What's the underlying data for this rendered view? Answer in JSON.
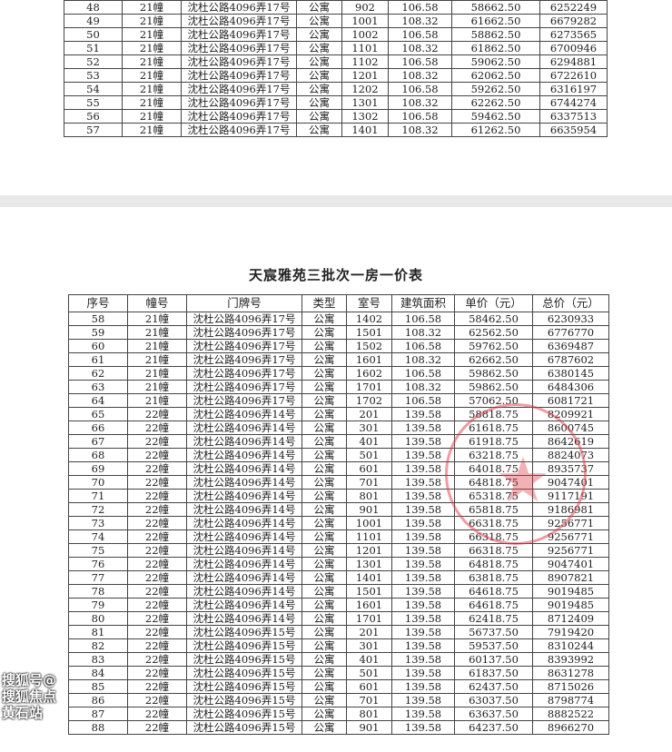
{
  "watermark": "搜狐号@搜狐焦点黄石站",
  "stamp_color": "#dc3c46",
  "page2": {
    "title": "天宸雅苑三批次一房一价表"
  },
  "headers": [
    "序号",
    "幢号",
    "门牌号",
    "类型",
    "室号",
    "建筑面积",
    "单价（元）",
    "总价（元）"
  ],
  "table1_rows": [
    [
      "48",
      "21幢",
      "沈杜公路4096弄17号",
      "公寓",
      "902",
      "106.58",
      "58662.50",
      "6252249"
    ],
    [
      "49",
      "21幢",
      "沈杜公路4096弄17号",
      "公寓",
      "1001",
      "108.32",
      "61662.50",
      "6679282"
    ],
    [
      "50",
      "21幢",
      "沈杜公路4096弄17号",
      "公寓",
      "1002",
      "106.58",
      "58862.50",
      "6273565"
    ],
    [
      "51",
      "21幢",
      "沈杜公路4096弄17号",
      "公寓",
      "1101",
      "108.32",
      "61862.50",
      "6700946"
    ],
    [
      "52",
      "21幢",
      "沈杜公路4096弄17号",
      "公寓",
      "1102",
      "106.58",
      "59062.50",
      "6294881"
    ],
    [
      "53",
      "21幢",
      "沈杜公路4096弄17号",
      "公寓",
      "1201",
      "108.32",
      "62062.50",
      "6722610"
    ],
    [
      "54",
      "21幢",
      "沈杜公路4096弄17号",
      "公寓",
      "1202",
      "106.58",
      "59262.50",
      "6316197"
    ],
    [
      "55",
      "21幢",
      "沈杜公路4096弄17号",
      "公寓",
      "1301",
      "108.32",
      "62262.50",
      "6744274"
    ],
    [
      "56",
      "21幢",
      "沈杜公路4096弄17号",
      "公寓",
      "1302",
      "106.58",
      "59462.50",
      "6337513"
    ],
    [
      "57",
      "21幢",
      "沈杜公路4096弄17号",
      "公寓",
      "1401",
      "108.32",
      "61262.50",
      "6635954"
    ]
  ],
  "table2_rows": [
    [
      "58",
      "21幢",
      "沈杜公路4096弄17号",
      "公寓",
      "1402",
      "106.58",
      "58462.50",
      "6230933"
    ],
    [
      "59",
      "21幢",
      "沈杜公路4096弄17号",
      "公寓",
      "1501",
      "108.32",
      "62562.50",
      "6776770"
    ],
    [
      "60",
      "21幢",
      "沈杜公路4096弄17号",
      "公寓",
      "1502",
      "106.58",
      "59762.50",
      "6369487"
    ],
    [
      "61",
      "21幢",
      "沈杜公路4096弄17号",
      "公寓",
      "1601",
      "108.32",
      "62662.50",
      "6787602"
    ],
    [
      "62",
      "21幢",
      "沈杜公路4096弄17号",
      "公寓",
      "1602",
      "106.58",
      "59862.50",
      "6380145"
    ],
    [
      "63",
      "21幢",
      "沈杜公路4096弄17号",
      "公寓",
      "1701",
      "108.32",
      "59862.50",
      "6484306"
    ],
    [
      "64",
      "21幢",
      "沈杜公路4096弄17号",
      "公寓",
      "1702",
      "106.58",
      "57062.50",
      "6081721"
    ],
    [
      "65",
      "22幢",
      "沈杜公路4096弄14号",
      "公寓",
      "201",
      "139.58",
      "58818.75",
      "8209921"
    ],
    [
      "66",
      "22幢",
      "沈杜公路4096弄14号",
      "公寓",
      "301",
      "139.58",
      "61618.75",
      "8600745"
    ],
    [
      "67",
      "22幢",
      "沈杜公路4096弄14号",
      "公寓",
      "401",
      "139.58",
      "61918.75",
      "8642619"
    ],
    [
      "68",
      "22幢",
      "沈杜公路4096弄14号",
      "公寓",
      "501",
      "139.58",
      "63218.75",
      "8824073"
    ],
    [
      "69",
      "22幢",
      "沈杜公路4096弄14号",
      "公寓",
      "601",
      "139.58",
      "64018.75",
      "8935737"
    ],
    [
      "70",
      "22幢",
      "沈杜公路4096弄14号",
      "公寓",
      "701",
      "139.58",
      "64818.75",
      "9047401"
    ],
    [
      "71",
      "22幢",
      "沈杜公路4096弄14号",
      "公寓",
      "801",
      "139.58",
      "65318.75",
      "9117191"
    ],
    [
      "72",
      "22幢",
      "沈杜公路4096弄14号",
      "公寓",
      "901",
      "139.58",
      "65818.75",
      "9186981"
    ],
    [
      "73",
      "22幢",
      "沈杜公路4096弄14号",
      "公寓",
      "1001",
      "139.58",
      "66318.75",
      "9256771"
    ],
    [
      "74",
      "22幢",
      "沈杜公路4096弄14号",
      "公寓",
      "1101",
      "139.58",
      "66318.75",
      "9256771"
    ],
    [
      "75",
      "22幢",
      "沈杜公路4096弄14号",
      "公寓",
      "1201",
      "139.58",
      "66318.75",
      "9256771"
    ],
    [
      "76",
      "22幢",
      "沈杜公路4096弄14号",
      "公寓",
      "1301",
      "139.58",
      "64818.75",
      "9047401"
    ],
    [
      "77",
      "22幢",
      "沈杜公路4096弄14号",
      "公寓",
      "1401",
      "139.58",
      "63818.75",
      "8907821"
    ],
    [
      "78",
      "22幢",
      "沈杜公路4096弄14号",
      "公寓",
      "1501",
      "139.58",
      "64618.75",
      "9019485"
    ],
    [
      "79",
      "22幢",
      "沈杜公路4096弄14号",
      "公寓",
      "1601",
      "139.58",
      "64618.75",
      "9019485"
    ],
    [
      "80",
      "22幢",
      "沈杜公路4096弄14号",
      "公寓",
      "1701",
      "139.58",
      "62418.75",
      "8712409"
    ],
    [
      "81",
      "22幢",
      "沈杜公路4096弄15号",
      "公寓",
      "201",
      "139.58",
      "56737.50",
      "7919420"
    ],
    [
      "82",
      "22幢",
      "沈杜公路4096弄15号",
      "公寓",
      "301",
      "139.58",
      "59537.50",
      "8310244"
    ],
    [
      "83",
      "22幢",
      "沈杜公路4096弄15号",
      "公寓",
      "401",
      "139.58",
      "60137.50",
      "8393992"
    ],
    [
      "84",
      "22幢",
      "沈杜公路4096弄15号",
      "公寓",
      "501",
      "139.58",
      "61837.50",
      "8631278"
    ],
    [
      "85",
      "22幢",
      "沈杜公路4096弄15号",
      "公寓",
      "601",
      "139.58",
      "62437.50",
      "8715026"
    ],
    [
      "86",
      "22幢",
      "沈杜公路4096弄15号",
      "公寓",
      "701",
      "139.58",
      "63037.50",
      "8798774"
    ],
    [
      "87",
      "22幢",
      "沈杜公路4096弄15号",
      "公寓",
      "801",
      "139.58",
      "63637.50",
      "8882522"
    ],
    [
      "88",
      "22幢",
      "沈杜公路4096弄15号",
      "公寓",
      "901",
      "139.58",
      "64237.50",
      "8966270"
    ]
  ]
}
